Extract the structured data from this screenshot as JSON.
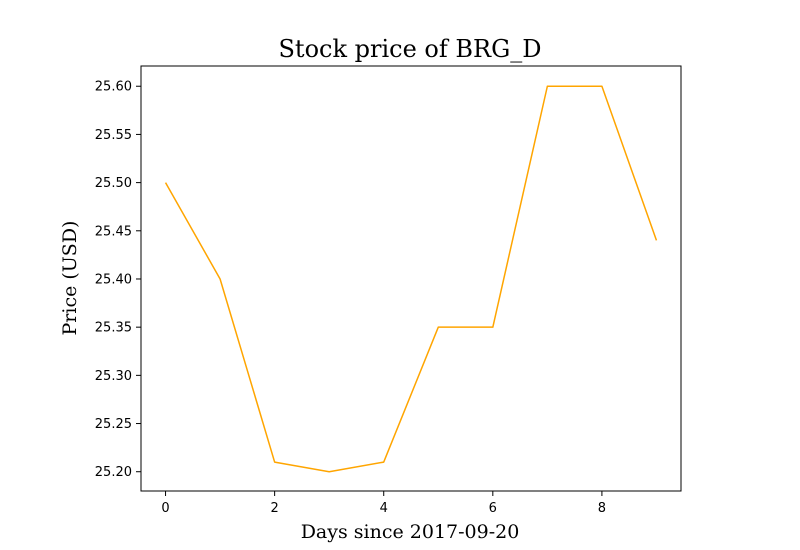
{
  "chart_data": {
    "type": "line",
    "title": "Stock price of BRG_D",
    "xlabel": "Days since 2017-09-20",
    "ylabel": "Price (USD)",
    "x": [
      0,
      1,
      2,
      3,
      4,
      5,
      6,
      7,
      8,
      9
    ],
    "series": [
      {
        "values": [
          25.5,
          25.4,
          25.21,
          25.2,
          25.21,
          25.35,
          25.35,
          25.6,
          25.6,
          25.44
        ],
        "color": "#ffa500"
      }
    ],
    "xlim": [
      -0.45,
      9.45
    ],
    "ylim": [
      25.18,
      25.621
    ],
    "x_ticks": [
      0,
      2,
      4,
      6,
      8
    ],
    "x_tick_labels": [
      "0",
      "2",
      "4",
      "6",
      "8"
    ],
    "y_ticks": [
      25.2,
      25.25,
      25.3,
      25.35,
      25.4,
      25.45,
      25.5,
      25.55,
      25.6
    ],
    "y_tick_labels": [
      "25.20",
      "25.25",
      "25.30",
      "25.35",
      "25.40",
      "25.45",
      "25.50",
      "25.55",
      "25.60"
    ],
    "grid": false,
    "legend": "none"
  }
}
